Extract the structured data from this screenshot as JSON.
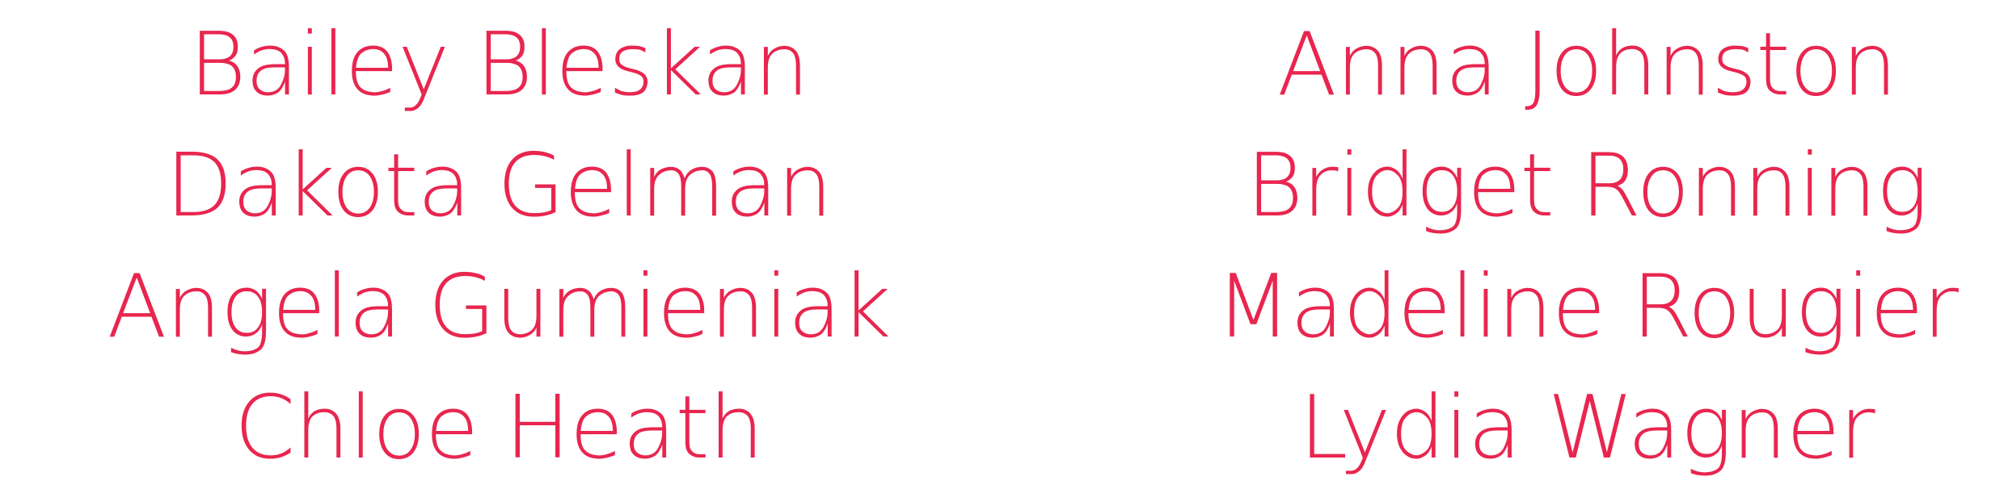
{
  "colors": {
    "text": "#e8264f",
    "background": "#ffffff"
  },
  "names": {
    "left": [
      "Bailey Bleskan",
      "Dakota Gelman",
      "Angela Gumieniak",
      "Chloe Heath"
    ],
    "right": [
      "Anna Johnston",
      "Bridget Ronning",
      "Madeline Rougier",
      "Lydia Wagner"
    ]
  }
}
